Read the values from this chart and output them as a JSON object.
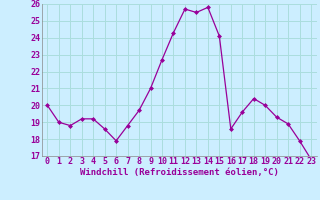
{
  "hours": [
    0,
    1,
    2,
    3,
    4,
    5,
    6,
    7,
    8,
    9,
    10,
    11,
    12,
    13,
    14,
    15,
    16,
    17,
    18,
    19,
    20,
    21,
    22,
    23
  ],
  "values": [
    20.0,
    19.0,
    18.8,
    19.2,
    19.2,
    18.6,
    17.9,
    18.8,
    19.7,
    21.0,
    22.7,
    24.3,
    25.7,
    25.5,
    25.8,
    24.1,
    18.6,
    19.6,
    20.4,
    20.0,
    19.3,
    18.9,
    17.9,
    16.8
  ],
  "line_color": "#990099",
  "marker": "D",
  "marker_size": 2.0,
  "bg_color": "#cceeff",
  "grid_color": "#aadddd",
  "xlabel": "Windchill (Refroidissement éolien,°C)",
  "xlabel_color": "#990099",
  "xlabel_fontsize": 6.5,
  "tick_color": "#990099",
  "tick_fontsize": 6.0,
  "ylim": [
    17,
    26
  ],
  "yticks": [
    17,
    18,
    19,
    20,
    21,
    22,
    23,
    24,
    25,
    26
  ],
  "xticks": [
    0,
    1,
    2,
    3,
    4,
    5,
    6,
    7,
    8,
    9,
    10,
    11,
    12,
    13,
    14,
    15,
    16,
    17,
    18,
    19,
    20,
    21,
    22,
    23
  ]
}
